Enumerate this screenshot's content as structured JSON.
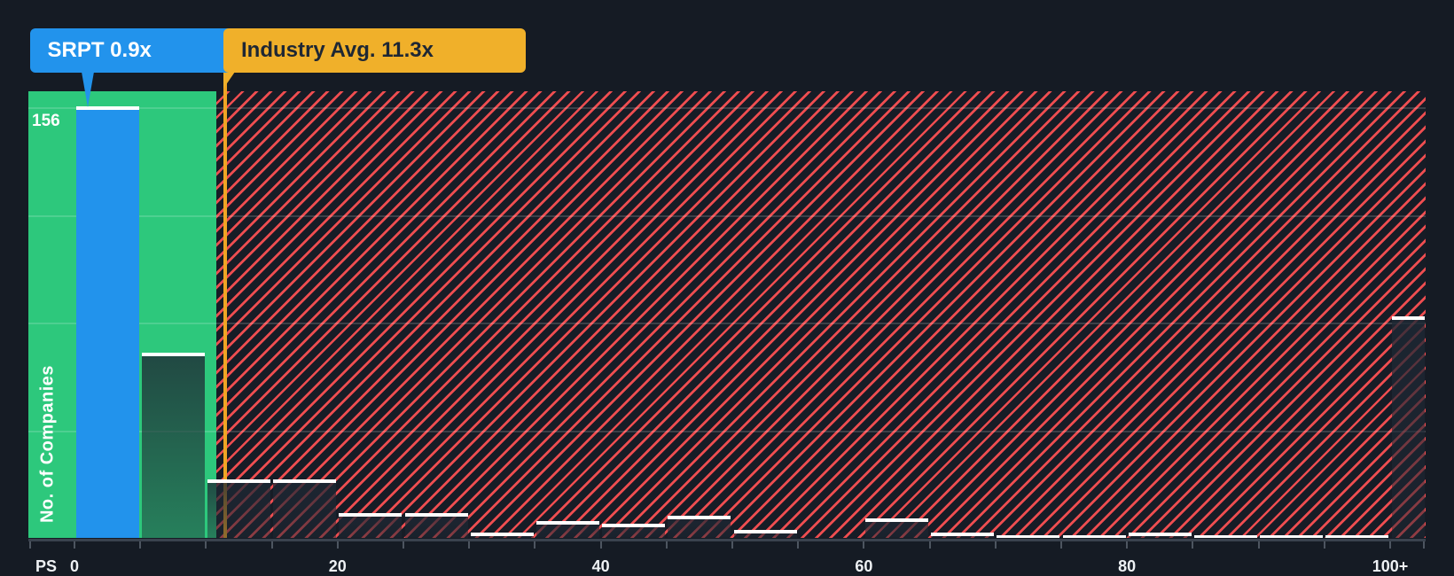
{
  "colors": {
    "background": "#151b24",
    "green_zone": "#2dc87c",
    "company_blue": "#2293ec",
    "tooltip_orange": "#f0b02a",
    "industry_line_orange": "#f0a524",
    "hatch_red": "#ee4d50",
    "bar_cap_white": "#ffffff"
  },
  "tooltips": {
    "company": "SRPT 0.9x",
    "industry": "Industry Avg. 11.3x"
  },
  "y_axis_label": "No. of Companies",
  "max_count_label": "156",
  "x_axis": {
    "metric_label": "PS",
    "tick_labels": [
      "0",
      "20",
      "40",
      "60",
      "80",
      "100+"
    ]
  },
  "chart_data": {
    "type": "bar",
    "title": "PS ratio histogram: SRPT vs industry",
    "xlabel": "PS",
    "ylabel": "No. of Companies",
    "company": {
      "ticker": "SRPT",
      "ps_ratio": 0.9
    },
    "industry_avg_ps": 11.3,
    "x_range": [
      0,
      100
    ],
    "x_tick_step": 5,
    "bins": [
      {
        "start": 0,
        "end": 5,
        "count": 156,
        "highlight": "company"
      },
      {
        "start": 5,
        "end": 10,
        "count": 67
      },
      {
        "start": 10,
        "end": 15,
        "count": 21
      },
      {
        "start": 15,
        "end": 20,
        "count": 21
      },
      {
        "start": 20,
        "end": 25,
        "count": 9
      },
      {
        "start": 25,
        "end": 30,
        "count": 9
      },
      {
        "start": 30,
        "end": 35,
        "count": 2
      },
      {
        "start": 35,
        "end": 40,
        "count": 6
      },
      {
        "start": 40,
        "end": 45,
        "count": 5
      },
      {
        "start": 45,
        "end": 50,
        "count": 8
      },
      {
        "start": 50,
        "end": 55,
        "count": 3
      },
      {
        "start": 55,
        "end": 60,
        "count": 0
      },
      {
        "start": 60,
        "end": 65,
        "count": 7
      },
      {
        "start": 65,
        "end": 70,
        "count": 2
      },
      {
        "start": 70,
        "end": 75,
        "count": 1
      },
      {
        "start": 75,
        "end": 80,
        "count": 1
      },
      {
        "start": 80,
        "end": 85,
        "count": 2
      },
      {
        "start": 85,
        "end": 90,
        "count": 1
      },
      {
        "start": 90,
        "end": 95,
        "count": 1
      },
      {
        "start": 95,
        "end": 100,
        "count": 1
      },
      {
        "start": 100,
        "end": 102.7,
        "count": 80,
        "label": "100+"
      }
    ]
  }
}
